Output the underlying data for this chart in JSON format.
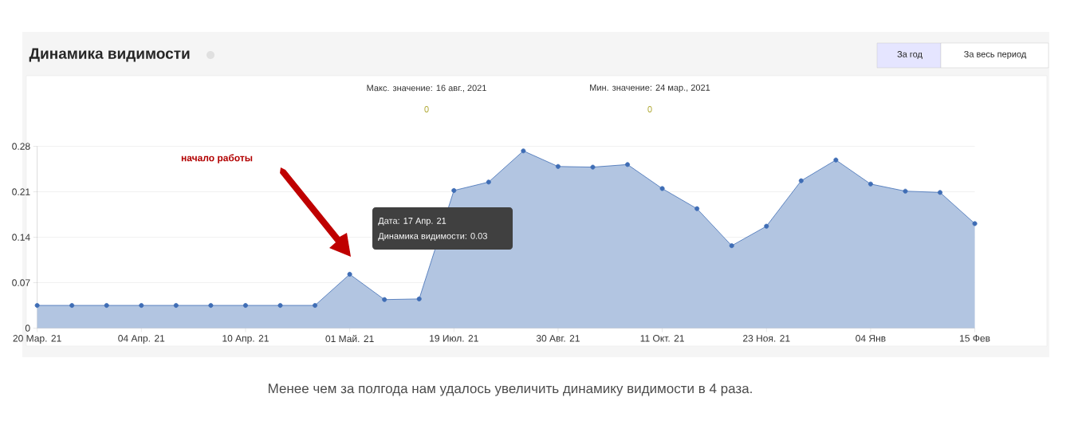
{
  "chart_data": {
    "type": "area",
    "title": "Динамика видимости",
    "categories": [
      "20 Мар. 21",
      null,
      null,
      "04 Апр. 21",
      null,
      null,
      "10 Апр. 21",
      null,
      null,
      "01 Май. 21",
      null,
      null,
      "19 Июл. 21",
      null,
      null,
      "30 Авг. 21",
      null,
      null,
      "11 Окт. 21",
      null,
      null,
      "23 Ноя. 21",
      null,
      null,
      "04 Янв",
      null,
      null,
      "15 Фев"
    ],
    "series": [
      {
        "color": "#3f6db5",
        "values": [
          0.035,
          0.035,
          0.035,
          0.035,
          0.035,
          0.035,
          0.035,
          0.035,
          0.035,
          0.083,
          0.044,
          0.045,
          0.212,
          0.225,
          0.273,
          0.249,
          0.248,
          0.252,
          0.215,
          0.184,
          0.127,
          0.157,
          0.227,
          0.259,
          0.222,
          0.211,
          0.209,
          0.161
        ]
      }
    ],
    "ylim": [
      0,
      0.28
    ],
    "yticks": [
      0,
      0.07,
      0.14,
      0.21,
      0.28
    ],
    "grid": "y",
    "marker": "circle",
    "line_style": "solid",
    "annotations": [
      "Макс. значение: 16 авг., 2021",
      "0",
      "Мин. значение: 24 мар., 2021",
      "0",
      "начало работы",
      "Дата: 17 Апр. 21",
      "Динамика видимости: 0.03",
      "За год",
      "За весь период",
      "Менее чем за полгода нам удалось увеличить динамику видимости в 4 раза."
    ]
  }
}
